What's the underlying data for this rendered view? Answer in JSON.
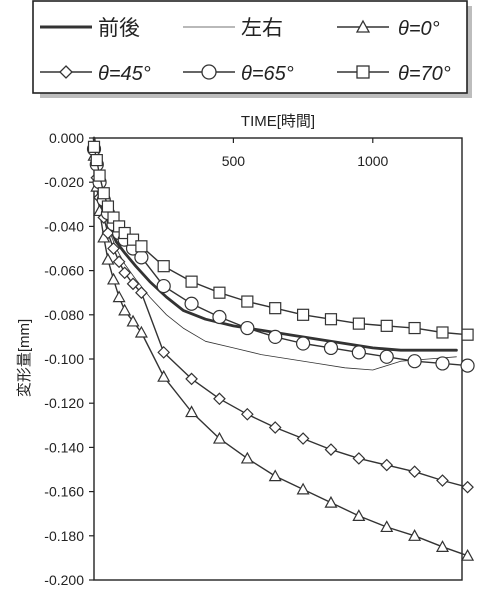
{
  "chart_data": {
    "type": "line",
    "title": "",
    "xlabel": "TIME[時間]",
    "ylabel": "変形量[mm]",
    "xlim": [
      0,
      1320
    ],
    "ylim": [
      -0.2,
      0.0
    ],
    "x_ticks": [
      500,
      1000
    ],
    "x_tick_labels": [
      "500",
      "1000"
    ],
    "y_ticks": [
      0.0,
      -0.02,
      -0.04,
      -0.06,
      -0.08,
      -0.1,
      -0.12,
      -0.14,
      -0.16,
      -0.18,
      -0.2
    ],
    "y_tick_labels": [
      "0.000",
      "-0.020",
      "-0.040",
      "-0.060",
      "-0.080",
      "-0.100",
      "-0.120",
      "-0.140",
      "-0.160",
      "-0.180",
      "-0.200"
    ],
    "x_axis_position": "top",
    "grid": false,
    "legend_position": "top",
    "series": [
      {
        "name": "前後",
        "marker": "none",
        "style": "thick",
        "points": [
          [
            0,
            0.0
          ],
          [
            10,
            -0.01
          ],
          [
            20,
            -0.02
          ],
          [
            35,
            -0.03
          ],
          [
            55,
            -0.04
          ],
          [
            80,
            -0.047
          ],
          [
            110,
            -0.052
          ],
          [
            150,
            -0.058
          ],
          [
            200,
            -0.065
          ],
          [
            260,
            -0.072
          ],
          [
            320,
            -0.078
          ],
          [
            400,
            -0.082
          ],
          [
            500,
            -0.085
          ],
          [
            600,
            -0.087
          ],
          [
            700,
            -0.089
          ],
          [
            800,
            -0.091
          ],
          [
            900,
            -0.093
          ],
          [
            1000,
            -0.095
          ],
          [
            1100,
            -0.096
          ],
          [
            1200,
            -0.096
          ],
          [
            1300,
            -0.096
          ]
        ]
      },
      {
        "name": "左右",
        "marker": "none",
        "style": "thin",
        "points": [
          [
            0,
            0.0
          ],
          [
            10,
            -0.012
          ],
          [
            20,
            -0.022
          ],
          [
            35,
            -0.032
          ],
          [
            55,
            -0.042
          ],
          [
            80,
            -0.05
          ],
          [
            110,
            -0.057
          ],
          [
            150,
            -0.064
          ],
          [
            200,
            -0.072
          ],
          [
            260,
            -0.08
          ],
          [
            320,
            -0.086
          ],
          [
            400,
            -0.092
          ],
          [
            500,
            -0.095
          ],
          [
            600,
            -0.098
          ],
          [
            700,
            -0.1
          ],
          [
            800,
            -0.102
          ],
          [
            900,
            -0.104
          ],
          [
            1000,
            -0.105
          ],
          [
            1100,
            -0.101
          ],
          [
            1200,
            -0.1
          ],
          [
            1300,
            -0.099
          ]
        ]
      },
      {
        "name": "θ=0°",
        "marker": "triangle",
        "style": "normal",
        "points": [
          [
            0,
            -0.008
          ],
          [
            10,
            -0.022
          ],
          [
            20,
            -0.033
          ],
          [
            35,
            -0.045
          ],
          [
            50,
            -0.055
          ],
          [
            70,
            -0.064
          ],
          [
            90,
            -0.072
          ],
          [
            110,
            -0.078
          ],
          [
            140,
            -0.083
          ],
          [
            170,
            -0.088
          ],
          [
            250,
            -0.108
          ],
          [
            350,
            -0.124
          ],
          [
            450,
            -0.136
          ],
          [
            550,
            -0.145
          ],
          [
            650,
            -0.153
          ],
          [
            750,
            -0.159
          ],
          [
            850,
            -0.165
          ],
          [
            950,
            -0.171
          ],
          [
            1050,
            -0.176
          ],
          [
            1150,
            -0.18
          ],
          [
            1250,
            -0.185
          ],
          [
            1340,
            -0.189
          ]
        ]
      },
      {
        "name": "θ=45°",
        "marker": "diamond",
        "style": "normal",
        "points": [
          [
            0,
            -0.006
          ],
          [
            10,
            -0.018
          ],
          [
            20,
            -0.027
          ],
          [
            35,
            -0.036
          ],
          [
            50,
            -0.043
          ],
          [
            70,
            -0.05
          ],
          [
            90,
            -0.056
          ],
          [
            110,
            -0.061
          ],
          [
            140,
            -0.066
          ],
          [
            170,
            -0.07
          ],
          [
            250,
            -0.097
          ],
          [
            350,
            -0.109
          ],
          [
            450,
            -0.118
          ],
          [
            550,
            -0.125
          ],
          [
            650,
            -0.131
          ],
          [
            750,
            -0.136
          ],
          [
            850,
            -0.141
          ],
          [
            950,
            -0.145
          ],
          [
            1050,
            -0.148
          ],
          [
            1150,
            -0.151
          ],
          [
            1250,
            -0.155
          ],
          [
            1340,
            -0.158
          ]
        ]
      },
      {
        "name": "θ=65°",
        "marker": "circle",
        "style": "normal",
        "points": [
          [
            0,
            -0.005
          ],
          [
            10,
            -0.012
          ],
          [
            20,
            -0.02
          ],
          [
            35,
            -0.028
          ],
          [
            50,
            -0.034
          ],
          [
            70,
            -0.039
          ],
          [
            90,
            -0.043
          ],
          [
            110,
            -0.046
          ],
          [
            140,
            -0.05
          ],
          [
            170,
            -0.054
          ],
          [
            250,
            -0.067
          ],
          [
            350,
            -0.075
          ],
          [
            450,
            -0.081
          ],
          [
            550,
            -0.086
          ],
          [
            650,
            -0.09
          ],
          [
            750,
            -0.093
          ],
          [
            850,
            -0.095
          ],
          [
            950,
            -0.097
          ],
          [
            1050,
            -0.099
          ],
          [
            1150,
            -0.101
          ],
          [
            1250,
            -0.102
          ],
          [
            1340,
            -0.103
          ]
        ]
      },
      {
        "name": "θ=70°",
        "marker": "square",
        "style": "normal",
        "points": [
          [
            0,
            -0.004
          ],
          [
            10,
            -0.01
          ],
          [
            20,
            -0.017
          ],
          [
            35,
            -0.025
          ],
          [
            50,
            -0.031
          ],
          [
            70,
            -0.036
          ],
          [
            90,
            -0.04
          ],
          [
            110,
            -0.043
          ],
          [
            140,
            -0.046
          ],
          [
            170,
            -0.049
          ],
          [
            250,
            -0.058
          ],
          [
            350,
            -0.065
          ],
          [
            450,
            -0.07
          ],
          [
            550,
            -0.074
          ],
          [
            650,
            -0.077
          ],
          [
            750,
            -0.08
          ],
          [
            850,
            -0.082
          ],
          [
            950,
            -0.084
          ],
          [
            1050,
            -0.085
          ],
          [
            1150,
            -0.086
          ],
          [
            1250,
            -0.088
          ],
          [
            1340,
            -0.089
          ]
        ]
      }
    ]
  },
  "legend": {
    "row1": [
      "前後",
      "左右",
      "θ=0°"
    ],
    "row2": [
      "θ=45°",
      "θ=65°",
      "θ=70°"
    ]
  }
}
